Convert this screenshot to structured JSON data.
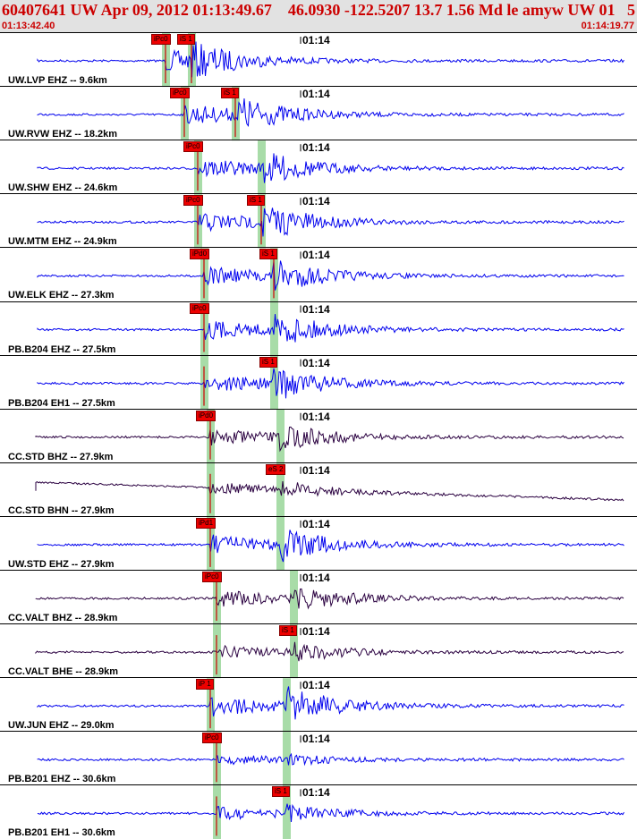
{
  "header": {
    "title": "60407641 UW Apr 09, 2012 01:13:49.67    46.0930 -122.5207 13.7 1.56 Md le amyw UW 01   5",
    "start_time": "01:13:42.40",
    "end_time": "01:14:19.77"
  },
  "colors": {
    "header_bg": "#e2e2e2",
    "header_text": "#cc0000",
    "trace_primary": "#0000ee",
    "trace_dark": "#2a0040",
    "pick_box": "#ee0000",
    "travel_band": "#a8dca8"
  },
  "traces": [
    {
      "station": "UW.LVP EHZ -- 9.6km",
      "tick": "01:14",
      "picks": [
        "iPc0",
        "iS 1"
      ],
      "style": "blue",
      "p": 0.26,
      "s": 0.3,
      "amp": 1.0
    },
    {
      "station": "UW.RVW EHZ -- 18.2km",
      "tick": "01:14",
      "picks": [
        "iPc0",
        "iS 1"
      ],
      "style": "blue",
      "p": 0.29,
      "s": 0.37,
      "amp": 1.0
    },
    {
      "station": "UW.SHW EHZ -- 24.6km",
      "tick": "01:14",
      "picks": [
        "iPc0"
      ],
      "style": "blue",
      "p": 0.31,
      "s": 0.41,
      "amp": 0.9
    },
    {
      "station": "UW.MTM EHZ -- 24.9km",
      "tick": "01:14",
      "picks": [
        "iPc0",
        "iS 1"
      ],
      "style": "blue",
      "p": 0.31,
      "s": 0.41,
      "amp": 1.0
    },
    {
      "station": "UW.ELK EHZ -- 27.3km",
      "tick": "01:14",
      "picks": [
        "iPd0",
        "iS 1"
      ],
      "style": "blue",
      "p": 0.32,
      "s": 0.43,
      "amp": 0.9
    },
    {
      "station": "PB.B204 EHZ -- 27.5km",
      "tick": "01:14",
      "picks": [
        "iPc0"
      ],
      "style": "blue",
      "p": 0.32,
      "s": 0.43,
      "amp": 0.9
    },
    {
      "station": "PB.B204 EH1 -- 27.5km",
      "tick": "01:14",
      "picks": [
        "iS 1"
      ],
      "style": "blue",
      "p": 0.32,
      "s": 0.43,
      "amp": 0.9
    },
    {
      "station": "CC.STD BHZ -- 27.9km",
      "tick": "01:14",
      "picks": [
        "iPd0"
      ],
      "style": "dark",
      "p": 0.33,
      "s": 0.44,
      "amp": 0.7
    },
    {
      "station": "CC.STD BHN -- 27.9km",
      "tick": "01:14",
      "picks": [
        "eS 2"
      ],
      "style": "dark",
      "p": 0.33,
      "s": 0.44,
      "amp": 0.6
    },
    {
      "station": "UW.STD EHZ -- 27.9km",
      "tick": "01:14",
      "picks": [
        "iPd1"
      ],
      "style": "blue",
      "p": 0.33,
      "s": 0.44,
      "amp": 0.9
    },
    {
      "station": "CC.VALT BHZ -- 28.9km",
      "tick": "01:14",
      "picks": [
        "iPc0"
      ],
      "style": "dark",
      "p": 0.34,
      "s": 0.46,
      "amp": 0.7
    },
    {
      "station": "CC.VALT BHE -- 28.9km",
      "tick": "01:14",
      "picks": [
        "iS 1"
      ],
      "style": "dark",
      "p": 0.34,
      "s": 0.46,
      "amp": 0.5
    },
    {
      "station": "UW.JUN EHZ -- 29.0km",
      "tick": "01:14",
      "picks": [
        "iP 1"
      ],
      "style": "blue",
      "p": 0.33,
      "s": 0.45,
      "amp": 1.0
    },
    {
      "station": "PB.B201 EHZ -- 30.6km",
      "tick": "01:14",
      "picks": [
        "iPc0"
      ],
      "style": "blue",
      "p": 0.34,
      "s": 0.45,
      "amp": 0.3
    },
    {
      "station": "PB.B201 EH1 -- 30.6km",
      "tick": "01:14",
      "picks": [
        "iS 1"
      ],
      "style": "blue",
      "p": 0.34,
      "s": 0.45,
      "amp": 0.5
    }
  ]
}
